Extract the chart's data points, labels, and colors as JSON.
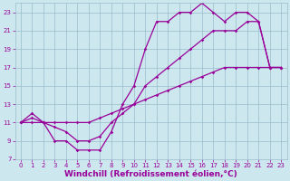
{
  "bg_color": "#cce8ee",
  "line_color": "#990099",
  "grid_color": "#99bbcc",
  "xlabel": "Windchill (Refroidissement éolien,°C)",
  "xlim": [
    -0.5,
    23.5
  ],
  "ylim": [
    7,
    24
  ],
  "xticks": [
    0,
    1,
    2,
    3,
    4,
    5,
    6,
    7,
    8,
    9,
    10,
    11,
    12,
    13,
    14,
    15,
    16,
    17,
    18,
    19,
    20,
    21,
    22,
    23
  ],
  "yticks": [
    7,
    9,
    11,
    13,
    15,
    17,
    19,
    21,
    23
  ],
  "line1_x": [
    0,
    1,
    2,
    3,
    4,
    5,
    6,
    7,
    8,
    9,
    10,
    11,
    12,
    13,
    14,
    15,
    16,
    17,
    18,
    19,
    20,
    21,
    22,
    23
  ],
  "line1_y": [
    11,
    12,
    11,
    9,
    9,
    8,
    8,
    8,
    10,
    13,
    15,
    19,
    22,
    22,
    23,
    23,
    24,
    23,
    22,
    23,
    23,
    22,
    17,
    17
  ],
  "line2_x": [
    0,
    1,
    2,
    3,
    4,
    5,
    6,
    7,
    8,
    9,
    10,
    11,
    12,
    13,
    14,
    15,
    16,
    17,
    18,
    19,
    20,
    21,
    22,
    23
  ],
  "line2_y": [
    11,
    11.5,
    11,
    10.5,
    10,
    9,
    9,
    9.5,
    11,
    12,
    13,
    15,
    16,
    17,
    18,
    19,
    20,
    21,
    21,
    21,
    22,
    22,
    17,
    17
  ],
  "line3_x": [
    0,
    1,
    2,
    3,
    4,
    5,
    6,
    7,
    8,
    9,
    10,
    11,
    12,
    13,
    14,
    15,
    16,
    17,
    18,
    19,
    20,
    21,
    22,
    23
  ],
  "line3_y": [
    11,
    11,
    11,
    11,
    11,
    11,
    11,
    11.5,
    12,
    12.5,
    13,
    13.5,
    14,
    14.5,
    15,
    15.5,
    16,
    16.5,
    17,
    17,
    17,
    17,
    17,
    17
  ],
  "marker": "D",
  "markersize": 1.8,
  "linewidth": 0.9,
  "tick_labelsize": 5,
  "xlabel_fontsize": 6.5,
  "xlabel_color": "#990099",
  "tick_color": "#990099"
}
